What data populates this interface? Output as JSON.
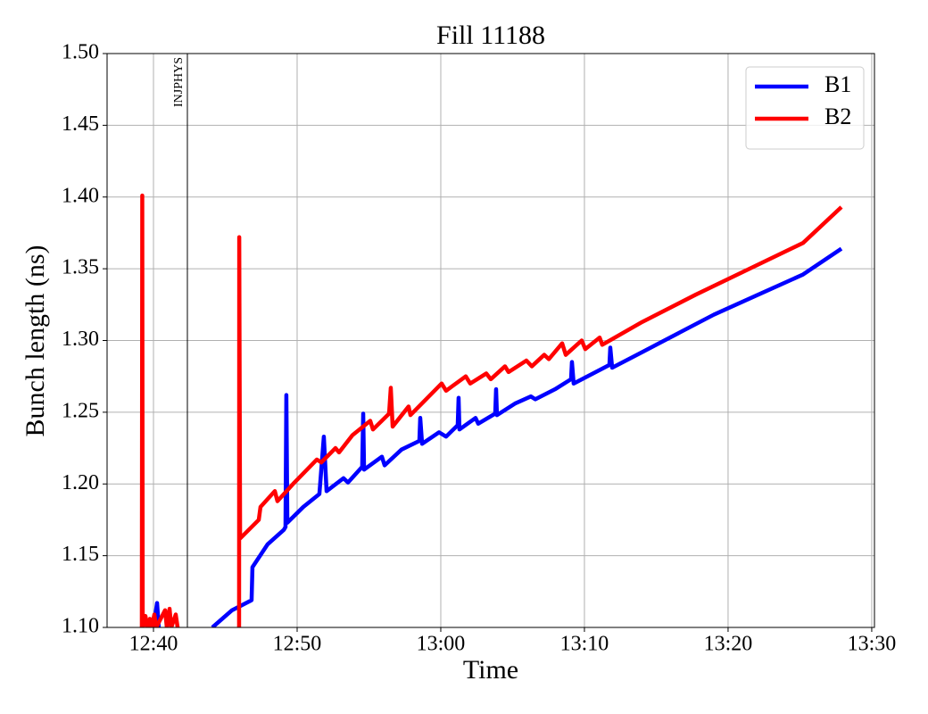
{
  "chart_data": {
    "type": "line",
    "title": "Fill 11188",
    "x_label": "Time",
    "y_label": "Bunch length (ns)",
    "xlim": [
      756.77,
      810.19
    ],
    "ylim": [
      1.1,
      1.5
    ],
    "xticks": [
      {
        "value": 760,
        "label": "12:40"
      },
      {
        "value": 770,
        "label": "12:50"
      },
      {
        "value": 780,
        "label": "13:00"
      },
      {
        "value": 790,
        "label": "13:10"
      },
      {
        "value": 800,
        "label": "13:20"
      },
      {
        "value": 810,
        "label": "13:30"
      }
    ],
    "yticks": [
      {
        "value": 1.1,
        "label": "1.10"
      },
      1.15,
      {
        "value": 1.2,
        "label": "1.20"
      },
      1.25,
      {
        "value": 1.3,
        "label": "1.30"
      },
      1.35,
      {
        "value": 1.4,
        "label": "1.40"
      },
      1.45,
      {
        "value": 1.5,
        "label": "1.50"
      }
    ],
    "grid": true,
    "legend": "upper right",
    "annotations": [
      {
        "text": "INJPHYS",
        "x": 762.36
      }
    ],
    "series": [
      {
        "name": "B1",
        "color": "#0000ff",
        "x": [
          760,
          760.25,
          760.37,
          null,
          764.1,
          765.47,
          766.83,
          766.89,
          767.95,
          769.07,
          769.19,
          769.25,
          769.32,
          770.43,
          771.55,
          771.86,
          772.05,
          773.23,
          773.54,
          774.53,
          774.6,
          774.66,
          775.9,
          776.09,
          777.27,
          778.51,
          778.57,
          778.7,
          779.88,
          780.37,
          781.18,
          781.24,
          781.3,
          782.42,
          782.61,
          783.79,
          783.85,
          783.91,
          785.16,
          786.27,
          786.58,
          787.95,
          789.07,
          789.13,
          789.25,
          791.74,
          791.8,
          791.93,
          794.04,
          796.52,
          799.01,
          802.11,
          805.22,
          807.89
        ],
        "values": [
          1.1,
          1.117,
          1.1,
          null,
          1.1,
          1.112,
          1.119,
          1.142,
          1.158,
          1.168,
          1.17,
          1.262,
          1.173,
          1.184,
          1.193,
          1.233,
          1.195,
          1.204,
          1.201,
          1.212,
          1.249,
          1.21,
          1.219,
          1.213,
          1.224,
          1.23,
          1.246,
          1.228,
          1.236,
          1.233,
          1.241,
          1.26,
          1.238,
          1.246,
          1.242,
          1.249,
          1.266,
          1.248,
          1.256,
          1.261,
          1.259,
          1.266,
          1.273,
          1.285,
          1.27,
          1.283,
          1.295,
          1.281,
          1.292,
          1.305,
          1.318,
          1.332,
          1.346,
          1.364
        ]
      },
      {
        "name": "B2",
        "color": "#ff0000",
        "x": [
          759.19,
          759.22,
          759.25,
          759.44,
          759.57,
          759.75,
          759.88,
          760.06,
          760.19,
          760.81,
          760.93,
          761.12,
          761.24,
          761.55,
          761.68,
          null,
          765.96,
          765.97,
          766.03,
          767.33,
          767.45,
          768.45,
          768.63,
          769.81,
          771.37,
          771.68,
          772.67,
          772.92,
          773.85,
          775.09,
          775.28,
          776.4,
          776.52,
          776.65,
          777.76,
          777.89,
          780.06,
          780.37,
          781.74,
          782.05,
          783.17,
          783.48,
          784.47,
          784.72,
          785.96,
          786.34,
          787.2,
          787.52,
          788.45,
          788.7,
          789.81,
          790.06,
          791.06,
          791.24,
          794.04,
          797.76,
          801.49,
          805.22,
          807.89
        ],
        "values": [
          1.1,
          1.401,
          1.1,
          1.108,
          1.1,
          1.106,
          1.1,
          1.109,
          1.1,
          1.112,
          1.1,
          1.113,
          1.1,
          1.109,
          1.1,
          null,
          1.1,
          1.372,
          1.162,
          1.175,
          1.184,
          1.195,
          1.188,
          1.201,
          1.217,
          1.215,
          1.225,
          1.222,
          1.234,
          1.244,
          1.238,
          1.249,
          1.267,
          1.24,
          1.254,
          1.248,
          1.27,
          1.265,
          1.275,
          1.27,
          1.277,
          1.273,
          1.282,
          1.278,
          1.286,
          1.282,
          1.29,
          1.287,
          1.298,
          1.29,
          1.3,
          1.294,
          1.302,
          1.297,
          1.313,
          1.332,
          1.35,
          1.368,
          1.393
        ]
      }
    ]
  }
}
